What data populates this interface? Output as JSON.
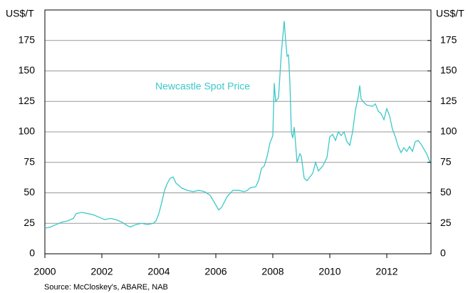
{
  "chart_data": {
    "type": "line",
    "y_label": "US$/T",
    "y2_label": "US$/T",
    "annotation": "Newcastle Spot Price",
    "source": "Source: McCloskey's, ABARE, NAB",
    "xlim": [
      2000,
      2013.55
    ],
    "xticks": [
      2000,
      2002,
      2004,
      2006,
      2008,
      2010,
      2012
    ],
    "ylim": [
      0,
      200
    ],
    "yticks": [
      0,
      25,
      50,
      75,
      100,
      125,
      150,
      175
    ],
    "y2lim": [
      0,
      200
    ],
    "y2ticks": [
      0,
      25,
      50,
      75,
      100,
      125,
      150,
      175
    ],
    "grid": true,
    "series": [
      {
        "name": "Newcastle Spot Price",
        "color": "#3cc8c8",
        "x": [
          2000.0,
          2000.2,
          2000.4,
          2000.6,
          2000.8,
          2001.0,
          2001.1,
          2001.3,
          2001.5,
          2001.7,
          2001.9,
          2002.1,
          2002.3,
          2002.5,
          2002.7,
          2002.9,
          2003.0,
          2003.2,
          2003.4,
          2003.6,
          2003.8,
          2003.9,
          2004.0,
          2004.1,
          2004.2,
          2004.3,
          2004.4,
          2004.5,
          2004.6,
          2004.8,
          2005.0,
          2005.2,
          2005.4,
          2005.6,
          2005.8,
          2005.9,
          2006.0,
          2006.1,
          2006.2,
          2006.4,
          2006.6,
          2006.8,
          2007.0,
          2007.1,
          2007.2,
          2007.4,
          2007.5,
          2007.6,
          2007.7,
          2007.8,
          2007.9,
          2008.0,
          2008.05,
          2008.1,
          2008.2,
          2008.3,
          2008.35,
          2008.4,
          2008.45,
          2008.5,
          2008.55,
          2008.6,
          2008.65,
          2008.7,
          2008.75,
          2008.8,
          2008.85,
          2008.95,
          2009.0,
          2009.1,
          2009.2,
          2009.3,
          2009.4,
          2009.5,
          2009.6,
          2009.75,
          2009.9,
          2010.0,
          2010.1,
          2010.2,
          2010.3,
          2010.4,
          2010.5,
          2010.6,
          2010.7,
          2010.8,
          2010.9,
          2011.0,
          2011.05,
          2011.1,
          2011.2,
          2011.3,
          2011.5,
          2011.6,
          2011.7,
          2011.8,
          2011.9,
          2012.0,
          2012.1,
          2012.2,
          2012.3,
          2012.4,
          2012.5,
          2012.6,
          2012.7,
          2012.8,
          2012.9,
          2013.0,
          2013.1,
          2013.2,
          2013.3,
          2013.4,
          2013.5,
          2013.55
        ],
        "values": [
          21,
          22,
          24,
          26,
          27,
          29,
          33,
          34,
          33,
          32,
          30,
          28,
          29,
          28,
          26,
          23,
          22,
          24,
          25,
          24,
          25,
          27,
          33,
          42,
          52,
          58,
          62,
          63,
          58,
          54,
          52,
          51,
          52,
          51,
          48,
          44,
          40,
          36,
          38,
          47,
          52,
          52,
          51,
          52,
          54,
          55,
          60,
          70,
          72,
          80,
          91,
          97,
          140,
          125,
          128,
          165,
          178,
          191,
          175,
          162,
          163,
          140,
          100,
          95,
          104,
          90,
          75,
          82,
          80,
          62,
          60,
          63,
          66,
          75,
          68,
          72,
          79,
          96,
          98,
          93,
          100,
          97,
          100,
          92,
          89,
          100,
          118,
          129,
          138,
          127,
          124,
          122,
          121,
          123,
          117,
          115,
          110,
          119,
          113,
          102,
          96,
          88,
          83,
          87,
          84,
          88,
          84,
          92,
          93,
          90,
          86,
          82,
          76,
          77
        ]
      }
    ]
  }
}
